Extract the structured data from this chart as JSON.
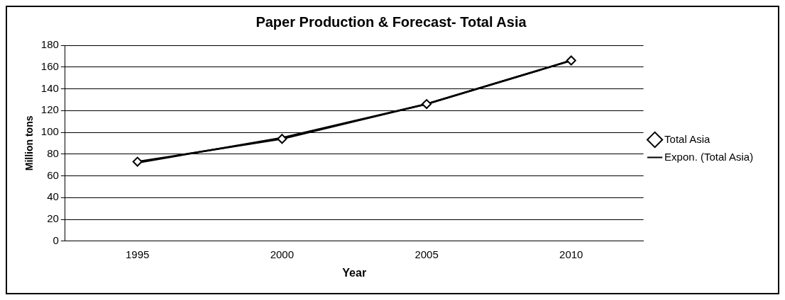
{
  "chart_data": {
    "type": "line",
    "title": "Paper Production & Forecast- Total Asia",
    "xlabel": "Year",
    "ylabel": "Million tons",
    "categories": [
      "1995",
      "2000",
      "2005",
      "2010"
    ],
    "series": [
      {
        "name": "Total Asia",
        "color": "#000000",
        "values": [
          73,
          94,
          126,
          166
        ],
        "marker": "diamond"
      },
      {
        "name": "Expon. (Total Asia)",
        "color": "#000000",
        "values": [
          72,
          95,
          126,
          166
        ],
        "marker": "none"
      }
    ],
    "ylim": [
      0,
      180
    ],
    "yticks": [
      0,
      20,
      40,
      60,
      80,
      100,
      120,
      140,
      160,
      180
    ],
    "grid": "y",
    "legend": "right"
  }
}
